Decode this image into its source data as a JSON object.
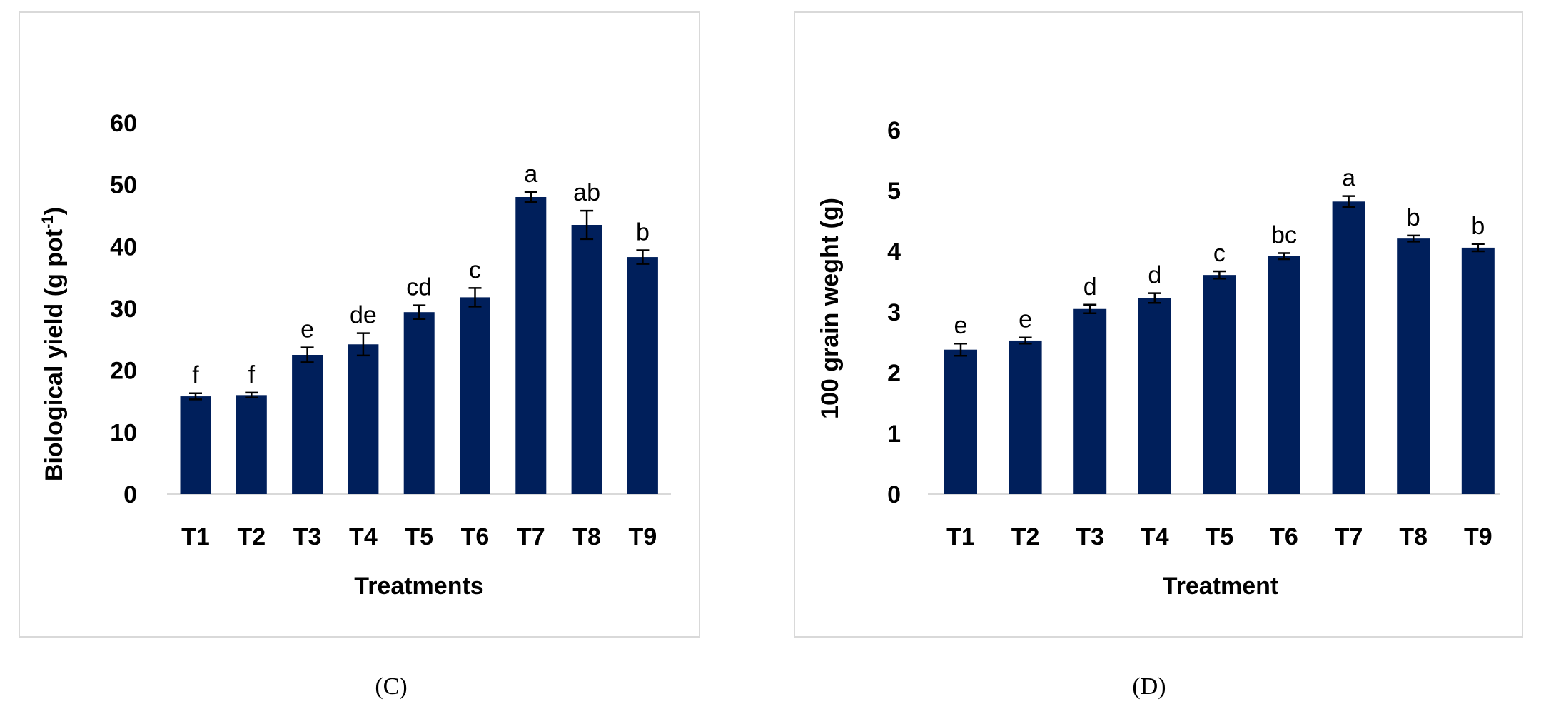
{
  "chart_data": [
    {
      "type": "bar",
      "panel": "(C)",
      "categories": [
        "T1",
        "T2",
        "T3",
        "T4",
        "T5",
        "T6",
        "T7",
        "T8",
        "T9"
      ],
      "values": [
        15.8,
        16.0,
        22.5,
        24.2,
        29.4,
        31.8,
        48.0,
        43.5,
        38.3
      ],
      "errors": [
        0.5,
        0.4,
        1.2,
        1.8,
        1.1,
        1.5,
        0.8,
        2.3,
        1.1
      ],
      "letters": [
        "f",
        "f",
        "e",
        "de",
        "cd",
        "c",
        "a",
        "ab",
        "b"
      ],
      "xlabel": "Treatments",
      "ylabel": "Biological yield (g pot",
      "ylabel_sup": "-1",
      "ylabel_end": ")",
      "ylim": [
        0,
        60
      ],
      "yticks": [
        0,
        10,
        20,
        30,
        40,
        50,
        60
      ],
      "bar_color": "#001f5b",
      "grid": false
    },
    {
      "type": "bar",
      "panel": "(D)",
      "categories": [
        "T1",
        "T2",
        "T3",
        "T4",
        "T5",
        "T6",
        "T7",
        "T8",
        "T9"
      ],
      "values": [
        2.38,
        2.53,
        3.05,
        3.23,
        3.61,
        3.92,
        4.82,
        4.21,
        4.06
      ],
      "errors": [
        0.1,
        0.05,
        0.07,
        0.08,
        0.06,
        0.05,
        0.09,
        0.05,
        0.06
      ],
      "letters": [
        "e",
        "e",
        "d",
        "d",
        "c",
        "bc",
        "a",
        "b",
        "b"
      ],
      "xlabel": "Treatment",
      "ylabel": "100 grain weght (g)",
      "ylim": [
        0,
        6
      ],
      "yticks": [
        0,
        1,
        2,
        3,
        4,
        5,
        6
      ],
      "bar_color": "#001f5b",
      "grid": false
    }
  ]
}
